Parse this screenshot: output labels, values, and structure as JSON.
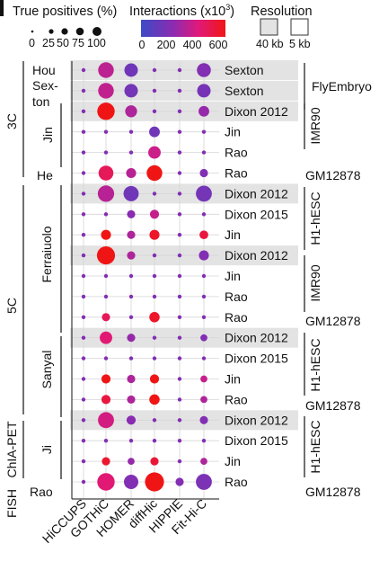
{
  "legend": {
    "size_title": "True positives (%)",
    "size_ticks": [
      "0",
      "25",
      "50",
      "75",
      "100"
    ],
    "color_title": "Interactions (x10",
    "color_title_sup": "3",
    "color_title_close": ")",
    "color_ticks": [
      "0",
      "200",
      "400",
      "600"
    ],
    "res_title": "Resolution",
    "res_items": [
      "40 kb",
      "5 kb"
    ]
  },
  "chart_data": {
    "type": "scatter",
    "subtype": "dot-matrix (size = true positives %, color = interactions x10^3)",
    "grid": true,
    "size_range_pct": [
      0,
      100
    ],
    "color_range_k": [
      0,
      600
    ],
    "colorscale": [
      "#3b4bc7",
      "#8c2bb0",
      "#e0197a",
      "#f01515"
    ],
    "tools": [
      "HiCCUPS",
      "GOTHiC",
      "HOMER",
      "diffHic",
      "HIPPIE",
      "Fit-Hi-C"
    ],
    "rows": [
      {
        "label": "Sexton",
        "res": "40kb",
        "pct": [
          0,
          30,
          20,
          0,
          0,
          22
        ],
        "k": [
          200,
          330,
          150,
          200,
          200,
          200
        ]
      },
      {
        "label": "Sexton",
        "res": "40kb",
        "pct": [
          0,
          30,
          20,
          0,
          0,
          20
        ],
        "k": [
          200,
          340,
          160,
          200,
          200,
          170
        ]
      },
      {
        "label": "Dixon 2012",
        "res": "40kb",
        "pct": [
          0,
          40,
          14,
          0,
          0,
          10
        ],
        "k": [
          200,
          650,
          300,
          200,
          200,
          250
        ]
      },
      {
        "label": "Jin",
        "res": "5kb",
        "pct": [
          0,
          0,
          0,
          10,
          0,
          0
        ],
        "k": [
          200,
          200,
          200,
          150,
          200,
          200
        ]
      },
      {
        "label": "Rao",
        "res": "5kb",
        "pct": [
          0,
          0,
          0,
          16,
          0,
          0
        ],
        "k": [
          200,
          200,
          200,
          360,
          200,
          200
        ]
      },
      {
        "label": "Rao",
        "res": "5kb",
        "pct": [
          0,
          26,
          8,
          30,
          0,
          4
        ],
        "k": [
          200,
          470,
          320,
          640,
          200,
          200
        ]
      },
      {
        "label": "Dixon 2012",
        "res": "40kb",
        "pct": [
          0,
          34,
          28,
          0,
          0,
          32
        ],
        "k": [
          200,
          320,
          150,
          200,
          200,
          160
        ]
      },
      {
        "label": "Dixon 2015",
        "res": "5kb",
        "pct": [
          0,
          0,
          4,
          6,
          0,
          0
        ],
        "k": [
          200,
          200,
          220,
          350,
          200,
          200
        ]
      },
      {
        "label": "Jin",
        "res": "5kb",
        "pct": [
          0,
          8,
          4,
          8,
          0,
          5
        ],
        "k": [
          200,
          600,
          300,
          560,
          200,
          520
        ]
      },
      {
        "label": "Dixon 2012",
        "res": "40kb",
        "pct": [
          0,
          44,
          4,
          0,
          0,
          8
        ],
        "k": [
          200,
          660,
          300,
          200,
          200,
          200
        ]
      },
      {
        "label": "Jin",
        "res": "5kb",
        "pct": [
          0,
          0,
          0,
          0,
          0,
          0
        ],
        "k": [
          200,
          200,
          200,
          200,
          200,
          200
        ]
      },
      {
        "label": "Rao",
        "res": "5kb",
        "pct": [
          0,
          0,
          0,
          0,
          0,
          0
        ],
        "k": [
          200,
          200,
          200,
          200,
          200,
          200
        ]
      },
      {
        "label": "Rao",
        "res": "5kb",
        "pct": [
          0,
          4,
          0,
          9,
          0,
          0
        ],
        "k": [
          200,
          470,
          200,
          560,
          200,
          200
        ]
      },
      {
        "label": "Dixon 2012",
        "res": "40kb",
        "pct": [
          0,
          16,
          4,
          0,
          0,
          2
        ],
        "k": [
          200,
          420,
          250,
          200,
          200,
          200
        ]
      },
      {
        "label": "Dixon 2015",
        "res": "5kb",
        "pct": [
          0,
          0,
          0,
          0,
          0,
          0
        ],
        "k": [
          200,
          200,
          200,
          200,
          200,
          200
        ]
      },
      {
        "label": "Jin",
        "res": "5kb",
        "pct": [
          0,
          6,
          4,
          6,
          0,
          2
        ],
        "k": [
          200,
          600,
          300,
          600,
          200,
          350
        ]
      },
      {
        "label": "Rao",
        "res": "5kb",
        "pct": [
          0,
          6,
          4,
          9,
          0,
          2
        ],
        "k": [
          200,
          520,
          300,
          620,
          200,
          300
        ]
      },
      {
        "label": "Dixon 2012",
        "res": "40kb",
        "pct": [
          0,
          32,
          6,
          0,
          0,
          4
        ],
        "k": [
          200,
          380,
          220,
          200,
          200,
          200
        ]
      },
      {
        "label": "Dixon 2015",
        "res": "5kb",
        "pct": [
          0,
          0,
          0,
          0,
          0,
          0
        ],
        "k": [
          200,
          200,
          200,
          200,
          200,
          200
        ]
      },
      {
        "label": "Jin",
        "res": "5kb",
        "pct": [
          0,
          4,
          2,
          4,
          0,
          2
        ],
        "k": [
          200,
          550,
          250,
          540,
          200,
          300
        ]
      },
      {
        "label": "Rao",
        "res": "5kb",
        "pct": [
          0,
          40,
          24,
          50,
          4,
          32
        ],
        "k": [
          200,
          420,
          200,
          620,
          200,
          180
        ]
      }
    ],
    "right_groups": [
      "FlyEmbryo",
      "IMR90",
      "GM12878",
      "H1-hESC",
      "IMR90",
      "GM12878",
      "H1-hESC",
      "GM12878",
      "H1-hESC",
      "GM12878"
    ],
    "method_groups": [
      "3C",
      "5C",
      "ChIA-PET",
      "FISH"
    ],
    "study_groups": [
      "Hou",
      "Sex-",
      "ton",
      "Jin",
      "He",
      "Ferraiuolo",
      "Sanyal",
      "Ji",
      "Rao"
    ]
  }
}
